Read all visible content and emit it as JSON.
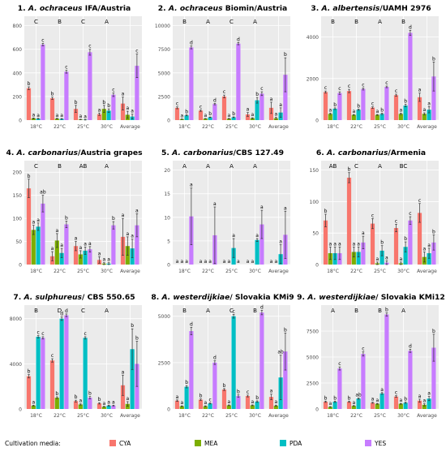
{
  "legend": {
    "title": "Cultivation media:",
    "items": [
      {
        "label": "CYA",
        "color": "#F8766D"
      },
      {
        "label": "MEA",
        "color": "#7CAE00"
      },
      {
        "label": "PDA",
        "color": "#00BFC4"
      },
      {
        "label": "YES",
        "color": "#C77CFF"
      }
    ]
  },
  "colors": {
    "panel_bg": "#EBEBEB",
    "grid": "#FFFFFF",
    "errorbar": "#333333"
  },
  "chart_data": [
    {
      "type": "bar",
      "title_prefix": "1. ",
      "title_italic": "A. ochraceus",
      "title_suffix": " IFA/Austria",
      "categories": [
        "18°C",
        "22°C",
        "25°C",
        "30°C",
        "Average"
      ],
      "group_letters": [
        "C",
        "B",
        "C",
        "A"
      ],
      "ylim": [
        0,
        880
      ],
      "yticks": [
        0,
        200,
        400,
        600,
        800
      ],
      "series": [
        {
          "name": "CYA",
          "values": [
            270,
            185,
            95,
            50,
            140
          ],
          "err": [
            12,
            10,
            30,
            10,
            55
          ],
          "letters": [
            "b",
            "b",
            "b",
            "a",
            "a"
          ]
        },
        {
          "name": "MEA",
          "values": [
            15,
            12,
            5,
            95,
            45
          ],
          "err": [
            3,
            3,
            2,
            30,
            30
          ],
          "letters": [
            "a",
            "a",
            "a",
            "b",
            "a"
          ]
        },
        {
          "name": "PDA",
          "values": [
            12,
            10,
            3,
            80,
            30
          ],
          "err": [
            3,
            3,
            2,
            15,
            20
          ],
          "letters": [
            "a",
            "a",
            "a",
            "b",
            "a"
          ]
        },
        {
          "name": "YES",
          "values": [
            640,
            410,
            575,
            215,
            460
          ],
          "err": [
            10,
            12,
            25,
            15,
            100
          ],
          "letters": [
            "c",
            "c",
            "c",
            "c",
            "c"
          ]
        }
      ]
    },
    {
      "type": "bar",
      "title_prefix": "2. ",
      "title_italic": "A. ochraceus",
      "title_suffix": " Biomin/Austria",
      "categories": [
        "18°C",
        "22°C",
        "25°C",
        "30°C",
        "Average"
      ],
      "group_letters": [
        "B",
        "A",
        "C",
        "A"
      ],
      "ylim": [
        0,
        11000
      ],
      "yticks": [
        0,
        2500,
        5000,
        7500,
        10000
      ],
      "series": [
        {
          "name": "CYA",
          "values": [
            1300,
            1000,
            2500,
            600,
            1300
          ],
          "err": [
            100,
            80,
            150,
            200,
            600
          ],
          "letters": [
            "c",
            "c",
            "c",
            "a",
            "a"
          ]
        },
        {
          "name": "MEA",
          "values": [
            100,
            150,
            150,
            200,
            200
          ],
          "err": [
            20,
            20,
            30,
            50,
            100
          ],
          "letters": [
            "a",
            "a",
            "a",
            "a",
            "a"
          ]
        },
        {
          "name": "PDA",
          "values": [
            500,
            300,
            300,
            2100,
            800
          ],
          "err": [
            50,
            30,
            40,
            300,
            500
          ],
          "letters": [
            "b",
            "b",
            "b",
            "b",
            "a"
          ]
        },
        {
          "name": "YES",
          "values": [
            7700,
            1700,
            8100,
            2800,
            4800
          ],
          "err": [
            150,
            80,
            120,
            200,
            1800
          ],
          "letters": [
            "d",
            "d",
            "d",
            "c",
            "b"
          ]
        }
      ]
    },
    {
      "type": "bar",
      "title_prefix": "3. ",
      "title_italic": "A. albertensis",
      "title_suffix": "/UAMH 2976",
      "categories": [
        "18°C",
        "22°C",
        "25°C",
        "30°C",
        "Average"
      ],
      "group_letters": [
        "B",
        "B",
        "A",
        "B"
      ],
      "ylim": [
        0,
        5000
      ],
      "yticks": [
        0,
        2000,
        4000
      ],
      "series": [
        {
          "name": "CYA",
          "values": [
            1350,
            1400,
            600,
            1200,
            1100
          ],
          "err": [
            50,
            80,
            40,
            50,
            200
          ],
          "letters": [
            "c",
            "c",
            "c",
            "c",
            "a"
          ]
        },
        {
          "name": "MEA",
          "values": [
            300,
            250,
            250,
            300,
            300
          ],
          "err": [
            30,
            20,
            20,
            30,
            50
          ],
          "letters": [
            "a",
            "a",
            "a",
            "a",
            "a"
          ]
        },
        {
          "name": "PDA",
          "values": [
            550,
            500,
            300,
            700,
            500
          ],
          "err": [
            40,
            30,
            30,
            60,
            150
          ],
          "letters": [
            "b",
            "b",
            "b",
            "b",
            "a"
          ]
        },
        {
          "name": "YES",
          "values": [
            1300,
            1500,
            1600,
            4200,
            2100
          ],
          "err": [
            60,
            50,
            40,
            120,
            700
          ],
          "letters": [
            "c",
            "c",
            "c",
            "d",
            "b"
          ]
        }
      ]
    },
    {
      "type": "bar",
      "title_prefix": "4. ",
      "title_italic": "A. carbonarius",
      "title_suffix": "/Austria grapes",
      "categories": [
        "18°C",
        "22°C",
        "25°C",
        "30°C",
        "Average"
      ],
      "group_letters": [
        "C",
        "B",
        "AB",
        "A"
      ],
      "ylim": [
        0,
        225
      ],
      "yticks": [
        0,
        50,
        100,
        150,
        200
      ],
      "series": [
        {
          "name": "CYA",
          "values": [
            165,
            18,
            40,
            10,
            60
          ],
          "err": [
            20,
            10,
            10,
            7,
            40
          ],
          "letters": [
            "b",
            "a",
            "a",
            "a",
            "a"
          ]
        },
        {
          "name": "MEA",
          "values": [
            75,
            52,
            22,
            2,
            40
          ],
          "err": [
            10,
            15,
            8,
            2,
            20
          ],
          "letters": [
            "a",
            "a",
            "a",
            "a",
            "a"
          ]
        },
        {
          "name": "PDA",
          "values": [
            82,
            25,
            30,
            2,
            35
          ],
          "err": [
            8,
            10,
            8,
            2,
            20
          ],
          "letters": [
            "a",
            "a",
            "a",
            "a",
            "a"
          ]
        },
        {
          "name": "YES",
          "values": [
            132,
            87,
            33,
            85,
            85
          ],
          "err": [
            18,
            7,
            6,
            8,
            25
          ],
          "letters": [
            "ab",
            "b",
            "a",
            "b",
            "a"
          ]
        }
      ]
    },
    {
      "type": "bar",
      "title_prefix": "5. ",
      "title_italic": "A. carbonarius",
      "title_suffix": "/CBS 127.49",
      "categories": [
        "18°C",
        "22°C",
        "25°C",
        "30°C",
        "Average"
      ],
      "group_letters": [
        "A",
        "A",
        "A",
        "A"
      ],
      "ylim": [
        0,
        22
      ],
      "yticks": [
        0,
        5,
        10,
        15,
        20
      ],
      "series": [
        {
          "name": "CYA",
          "values": [
            0,
            0,
            0,
            0,
            0
          ],
          "err": [
            0,
            0,
            0,
            0,
            0
          ],
          "letters": [
            "a",
            "a",
            "a",
            "a",
            "a"
          ]
        },
        {
          "name": "MEA",
          "values": [
            0,
            0,
            0,
            0,
            0
          ],
          "err": [
            0,
            0,
            0,
            0,
            0
          ],
          "letters": [
            "a",
            "a",
            "a",
            "a",
            "a"
          ]
        },
        {
          "name": "PDA",
          "values": [
            0,
            0,
            3.5,
            5.2,
            2.2
          ],
          "err": [
            0,
            0,
            2,
            0.3,
            2
          ],
          "letters": [
            "a",
            "a",
            "a",
            "a",
            "a"
          ]
        },
        {
          "name": "YES",
          "values": [
            10.2,
            6.2,
            0,
            8.5,
            6.3
          ],
          "err": [
            6,
            6,
            0,
            3,
            5
          ],
          "letters": [
            "a",
            "a",
            "a",
            "a",
            "a"
          ]
        }
      ]
    },
    {
      "type": "bar",
      "title_prefix": "6. ",
      "title_italic": "A. carbonarius",
      "title_suffix": "/Armenia",
      "categories": [
        "18°C",
        "22°C",
        "25°C",
        "30°C",
        "Average"
      ],
      "group_letters": [
        "AB",
        "C",
        "A",
        "BC"
      ],
      "ylim": [
        0,
        165
      ],
      "yticks": [
        0,
        50,
        100,
        150
      ],
      "series": [
        {
          "name": "CYA",
          "values": [
            70,
            138,
            65,
            58,
            82
          ],
          "err": [
            10,
            8,
            8,
            6,
            15
          ],
          "letters": [
            "b",
            "b",
            "c",
            "c",
            "c"
          ]
        },
        {
          "name": "MEA",
          "values": [
            18,
            20,
            2,
            2,
            12
          ],
          "err": [
            10,
            8,
            2,
            2,
            8
          ],
          "letters": [
            "a",
            "a",
            "a",
            "a",
            "a"
          ]
        },
        {
          "name": "PDA",
          "values": [
            18,
            20,
            22,
            28,
            18
          ],
          "err": [
            10,
            8,
            8,
            8,
            8
          ],
          "letters": [
            "a",
            "a",
            "b",
            "b",
            "a"
          ]
        },
        {
          "name": "YES",
          "values": [
            18,
            35,
            3,
            70,
            35
          ],
          "err": [
            10,
            10,
            3,
            6,
            12
          ],
          "letters": [
            "a",
            "a",
            "a",
            "c",
            "b"
          ]
        }
      ]
    },
    {
      "type": "bar",
      "title_prefix": "7. ",
      "title_italic": "A. sulphureus",
      "title_suffix": "/ CBS 550.65",
      "categories": [
        "18°C",
        "22°C",
        "25°C",
        "30°C",
        "Average"
      ],
      "group_letters": [
        "B",
        "D",
        "C",
        "A"
      ],
      "ylim": [
        0,
        9200
      ],
      "yticks": [
        0,
        4000,
        8000
      ],
      "series": [
        {
          "name": "CYA",
          "values": [
            2900,
            4300,
            700,
            500,
            2100
          ],
          "err": [
            150,
            150,
            80,
            60,
            900
          ],
          "letters": [
            "b",
            "c",
            "b",
            "b",
            "a"
          ]
        },
        {
          "name": "MEA",
          "values": [
            300,
            1000,
            400,
            200,
            450
          ],
          "err": [
            30,
            80,
            50,
            30,
            200
          ],
          "letters": [
            "a",
            "b",
            "a",
            "a",
            "a"
          ]
        },
        {
          "name": "PDA",
          "values": [
            6400,
            8000,
            6300,
            300,
            5300
          ],
          "err": [
            100,
            150,
            100,
            40,
            1800
          ],
          "letters": [
            "c",
            "d",
            "c",
            "a",
            "b"
          ]
        },
        {
          "name": "YES",
          "values": [
            6300,
            8300,
            1000,
            300,
            4000
          ],
          "err": [
            100,
            120,
            100,
            30,
            2000
          ],
          "letters": [
            "c",
            "d",
            "b",
            "a",
            "b"
          ]
        }
      ]
    },
    {
      "type": "bar",
      "title_prefix": "8. ",
      "title_italic": "A. westerdijkiae",
      "title_suffix": "/ Slovakia KMi9",
      "categories": [
        "18°C",
        "22°C",
        "25°C",
        "30°C",
        "Average"
      ],
      "group_letters": [
        "B",
        "A",
        "C",
        "B"
      ],
      "ylim": [
        0,
        5600
      ],
      "yticks": [
        0,
        2500,
        5000
      ],
      "series": [
        {
          "name": "CYA",
          "values": [
            450,
            500,
            1050,
            700,
            650
          ],
          "err": [
            40,
            40,
            50,
            50,
            150
          ],
          "letters": [
            "a",
            "b",
            "b",
            "c",
            "a"
          ]
        },
        {
          "name": "MEA",
          "values": [
            150,
            150,
            200,
            200,
            180
          ],
          "err": [
            20,
            20,
            20,
            20,
            30
          ],
          "letters": [
            "a",
            "a",
            "a",
            "a",
            "a"
          ]
        },
        {
          "name": "PDA",
          "values": [
            1200,
            300,
            5000,
            400,
            1700
          ],
          "err": [
            60,
            30,
            100,
            40,
            1200
          ],
          "letters": [
            "b",
            "c",
            "c",
            "b",
            "ab"
          ]
        },
        {
          "name": "YES",
          "values": [
            4200,
            2500,
            700,
            5200,
            3100
          ],
          "err": [
            200,
            100,
            60,
            120,
            1000
          ],
          "letters": [
            "d",
            "d",
            "b",
            "d",
            "b"
          ]
        }
      ]
    },
    {
      "type": "bar",
      "title_prefix": "9. ",
      "title_italic": "A. westerdijkiae",
      "title_suffix": "/ Slovakia KMi12",
      "categories": [
        "18°C",
        "22°C",
        "25°C",
        "30°C",
        "Average"
      ],
      "group_letters": [
        "A",
        "B",
        "B",
        "A"
      ],
      "ylim": [
        0,
        10000
      ],
      "yticks": [
        0,
        2500,
        5000,
        7500
      ],
      "series": [
        {
          "name": "CYA",
          "values": [
            700,
            700,
            600,
            1200,
            800
          ],
          "err": [
            60,
            60,
            50,
            80,
            150
          ],
          "letters": [
            "b",
            "b",
            "a",
            "c",
            "a"
          ]
        },
        {
          "name": "MEA",
          "values": [
            200,
            300,
            500,
            500,
            400
          ],
          "err": [
            30,
            30,
            40,
            40,
            100
          ],
          "letters": [
            "a",
            "a",
            "a",
            "a",
            "a"
          ]
        },
        {
          "name": "PDA",
          "values": [
            700,
            1000,
            1500,
            600,
            1000
          ],
          "err": [
            60,
            60,
            80,
            60,
            200
          ],
          "letters": [
            "b",
            "ab",
            "a",
            "b",
            "a"
          ]
        },
        {
          "name": "YES",
          "values": [
            3900,
            5300,
            9100,
            5600,
            5900
          ],
          "err": [
            150,
            200,
            150,
            150,
            1300
          ],
          "letters": [
            "c",
            "c",
            "b",
            "d",
            "b"
          ]
        }
      ]
    }
  ]
}
